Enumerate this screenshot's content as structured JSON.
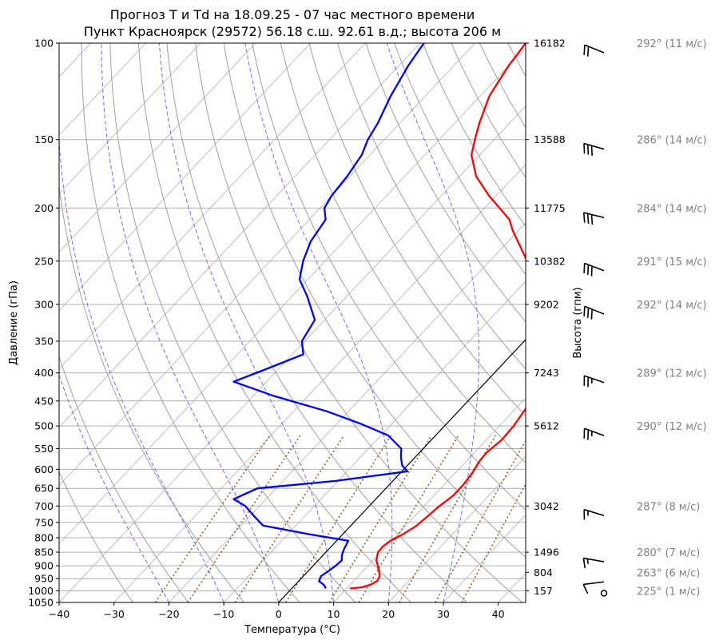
{
  "title_line1": "Прогноз T и Td на 18.09.25 - 07 час местного времени",
  "title_line2": "Пункт Красноярск (29572) 56.18 с.ш. 92.61 в.д.; высота 206 м",
  "colors": {
    "temperature": "#ff0000",
    "dewpoint": "#0000ff",
    "dry_adiabat": "#a0a0a0",
    "moist_adiabat": "#6b6bff",
    "mixing_ratio": "#8b5a2b",
    "isobar_grid": "#b0b0b0"
  },
  "chart_data": {
    "type": "line",
    "subtype": "skew-T log-P diagram",
    "xlabel": "Температура (°C)",
    "ylabel": "Давление (гПа)",
    "y2label": "Высота (гпм)",
    "x_ticks": [
      -40,
      -30,
      -20,
      -10,
      0,
      10,
      20,
      30,
      40
    ],
    "xlim": [
      -40,
      45
    ],
    "ylim": [
      1050,
      100
    ],
    "y_scale": "log",
    "y_ticks": [
      100,
      150,
      200,
      250,
      300,
      350,
      400,
      450,
      500,
      550,
      600,
      650,
      700,
      750,
      800,
      850,
      900,
      950,
      1000,
      1050
    ],
    "height_ticks": [
      {
        "p": 100,
        "h": "16182"
      },
      {
        "p": 150,
        "h": "13588"
      },
      {
        "p": 200,
        "h": "11775"
      },
      {
        "p": 250,
        "h": "10382"
      },
      {
        "p": 300,
        "h": "9202"
      },
      {
        "p": 400,
        "h": "7243"
      },
      {
        "p": 500,
        "h": "5612"
      },
      {
        "p": 700,
        "h": "3042"
      },
      {
        "p": 850,
        "h": "1496"
      },
      {
        "p": 925,
        "h": "804"
      },
      {
        "p": 1000,
        "h": "157"
      }
    ],
    "series": [
      {
        "role": "temperature",
        "points": [
          [
            990,
            10.6
          ],
          [
            985,
            12.6
          ],
          [
            975,
            13.7
          ],
          [
            960,
            14.3
          ],
          [
            940,
            13.9
          ],
          [
            920,
            12.9
          ],
          [
            900,
            11.8
          ],
          [
            880,
            10.6
          ],
          [
            850,
            9.5
          ],
          [
            830,
            9.4
          ],
          [
            810,
            9.8
          ],
          [
            790,
            10.9
          ],
          [
            760,
            12.0
          ],
          [
            730,
            12.4
          ],
          [
            700,
            12.8
          ],
          [
            670,
            13.5
          ],
          [
            640,
            13.5
          ],
          [
            610,
            13.1
          ],
          [
            580,
            12.4
          ],
          [
            560,
            12.2
          ],
          [
            530,
            12.8
          ],
          [
            500,
            12.6
          ],
          [
            450,
            11.5
          ],
          [
            420,
            10.5
          ],
          [
            400,
            8.0
          ],
          [
            370,
            4.6
          ],
          [
            340,
            1.4
          ],
          [
            300,
            -4.8
          ],
          [
            270,
            -9.0
          ],
          [
            245,
            -14.4
          ],
          [
            220,
            -21.0
          ],
          [
            210,
            -23.5
          ],
          [
            200,
            -27.3
          ],
          [
            190,
            -31.3
          ],
          [
            175,
            -37.0
          ],
          [
            160,
            -41.5
          ],
          [
            150,
            -43.5
          ],
          [
            140,
            -45.5
          ],
          [
            125,
            -48.3
          ],
          [
            110,
            -50.0
          ],
          [
            102,
            -50.6
          ],
          [
            100,
            -50.8
          ]
        ]
      },
      {
        "role": "dewpoint",
        "points": [
          [
            990,
            6.2
          ],
          [
            975,
            5.2
          ],
          [
            960,
            3.7
          ],
          [
            940,
            3.2
          ],
          [
            920,
            3.7
          ],
          [
            900,
            4.1
          ],
          [
            880,
            4.3
          ],
          [
            860,
            3.4
          ],
          [
            840,
            2.8
          ],
          [
            810,
            2.1
          ],
          [
            790,
            -5.5
          ],
          [
            760,
            -16.0
          ],
          [
            730,
            -19.3
          ],
          [
            700,
            -22.6
          ],
          [
            680,
            -25.9
          ],
          [
            650,
            -23.4
          ],
          [
            630,
            -10.4
          ],
          [
            605,
            1.0
          ],
          [
            590,
            -1.0
          ],
          [
            570,
            -2.6
          ],
          [
            550,
            -4.0
          ],
          [
            520,
            -8.7
          ],
          [
            495,
            -15.8
          ],
          [
            470,
            -24.0
          ],
          [
            440,
            -36.5
          ],
          [
            415,
            -46.0
          ],
          [
            395,
            -42.5
          ],
          [
            370,
            -38.0
          ],
          [
            350,
            -40.5
          ],
          [
            320,
            -41.8
          ],
          [
            290,
            -47.2
          ],
          [
            270,
            -51.5
          ],
          [
            250,
            -54.0
          ],
          [
            230,
            -56.0
          ],
          [
            210,
            -57.0
          ],
          [
            200,
            -59.2
          ],
          [
            190,
            -60.0
          ],
          [
            175,
            -60.5
          ],
          [
            160,
            -61.5
          ],
          [
            150,
            -63.0
          ],
          [
            140,
            -64.0
          ],
          [
            125,
            -66.3
          ],
          [
            110,
            -68.3
          ],
          [
            102,
            -69.1
          ],
          [
            100,
            -69.3
          ]
        ]
      }
    ]
  },
  "wind_barbs": [
    {
      "p": 100,
      "label": "292° (11 м/с)",
      "dir": 292,
      "speed": 11
    },
    {
      "p": 150,
      "label": "286° (14 м/с)",
      "dir": 286,
      "speed": 14
    },
    {
      "p": 200,
      "label": "284° (14 м/с)",
      "dir": 284,
      "speed": 14
    },
    {
      "p": 250,
      "label": "291° (15 м/с)",
      "dir": 291,
      "speed": 15
    },
    {
      "p": 300,
      "label": "292° (14 м/с)",
      "dir": 292,
      "speed": 14
    },
    {
      "p": 400,
      "label": "289° (12 м/с)",
      "dir": 289,
      "speed": 12
    },
    {
      "p": 500,
      "label": "290° (12 м/с)",
      "dir": 290,
      "speed": 12
    },
    {
      "p": 700,
      "label": "287° (8 м/с)",
      "dir": 287,
      "speed": 8
    },
    {
      "p": 850,
      "label": "280° (7 м/с)",
      "dir": 280,
      "speed": 7
    },
    {
      "p": 925,
      "label": "263° (6 м/с)",
      "dir": 263,
      "speed": 6
    },
    {
      "p": 1000,
      "label": "225° (1 м/с)",
      "dir": 225,
      "speed": 1
    }
  ]
}
